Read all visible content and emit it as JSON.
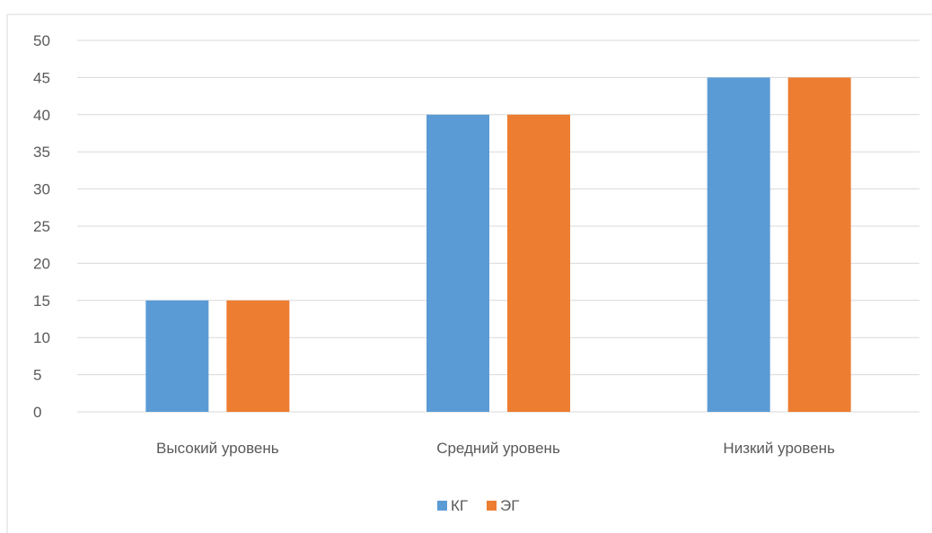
{
  "chart_data": {
    "type": "bar",
    "categories": [
      "Высокий уровень",
      "Средний уровень",
      "Низкий уровень"
    ],
    "series": [
      {
        "name": "КГ",
        "values": [
          15,
          40,
          45
        ],
        "color": "#5B9BD5"
      },
      {
        "name": "ЭГ",
        "values": [
          15,
          40,
          45
        ],
        "color": "#ED7D31"
      }
    ],
    "title": "",
    "xlabel": "",
    "ylabel": "",
    "ylim": [
      0,
      50
    ],
    "yticks": [
      0,
      5,
      10,
      15,
      20,
      25,
      30,
      35,
      40,
      45,
      50
    ],
    "grid": true,
    "legend_position": "bottom",
    "colors": {
      "gridline": "#D9D9D9",
      "axis_text": "#595959",
      "border": "#D9D9D9"
    }
  }
}
